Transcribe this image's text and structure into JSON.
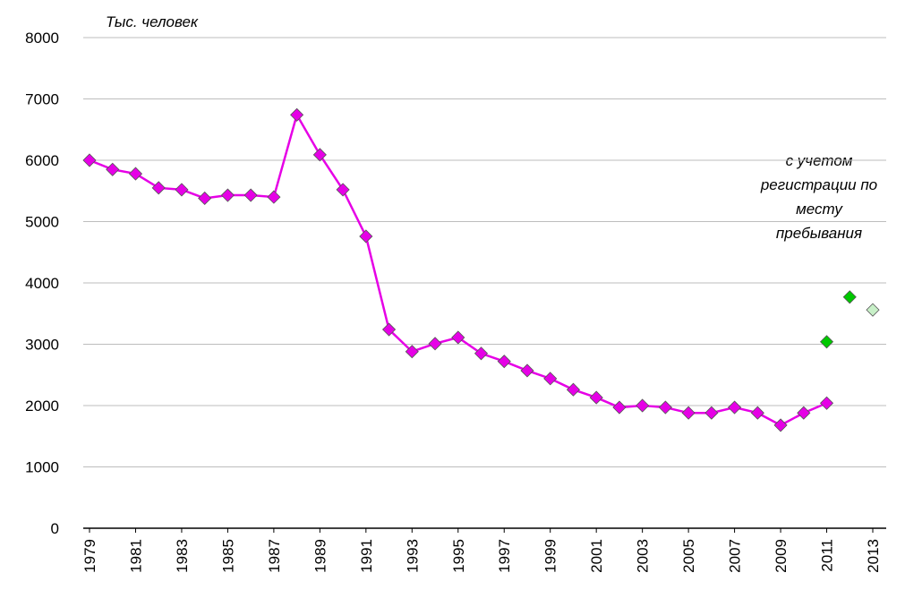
{
  "chart_data": {
    "type": "line",
    "annotations": [
      "Тыс. человек",
      [
        "с учетом",
        "регистрации по",
        "месту",
        "пребывания"
      ]
    ],
    "x": [
      1979,
      1980,
      1981,
      1982,
      1983,
      1984,
      1985,
      1986,
      1987,
      1988,
      1989,
      1990,
      1991,
      1992,
      1993,
      1994,
      1995,
      1996,
      1997,
      1998,
      1999,
      2000,
      2001,
      2002,
      2003,
      2004,
      2005,
      2006,
      2007,
      2008,
      2009,
      2010,
      2011,
      2012,
      2013
    ],
    "series": [
      {
        "color": "#e600e6",
        "line": true,
        "values": [
          6000,
          5850,
          5780,
          5550,
          5520,
          5380,
          5430,
          5430,
          5400,
          6740,
          6090,
          5520,
          4760,
          3240,
          2880,
          3010,
          3110,
          2850,
          2720,
          2570,
          2440,
          2260,
          2130,
          1970,
          2000,
          1970,
          1880,
          1880,
          1970,
          1880,
          1680,
          1880,
          2040,
          null,
          null
        ]
      },
      {
        "color": "#00c800",
        "line": false,
        "values": [
          null,
          null,
          null,
          null,
          null,
          null,
          null,
          null,
          null,
          null,
          null,
          null,
          null,
          null,
          null,
          null,
          null,
          null,
          null,
          null,
          null,
          null,
          null,
          null,
          null,
          null,
          null,
          null,
          null,
          null,
          null,
          null,
          3040,
          3770,
          null
        ]
      },
      {
        "color": "#c8f0c8",
        "line": false,
        "values": [
          null,
          null,
          null,
          null,
          null,
          null,
          null,
          null,
          null,
          null,
          null,
          null,
          null,
          null,
          null,
          null,
          null,
          null,
          null,
          null,
          null,
          null,
          null,
          null,
          null,
          null,
          null,
          null,
          null,
          null,
          null,
          null,
          null,
          null,
          3560
        ]
      }
    ],
    "xlim": [
      1979,
      2013
    ],
    "xticks": [
      1979,
      1981,
      1983,
      1985,
      1987,
      1989,
      1991,
      1993,
      1995,
      1997,
      1999,
      2001,
      2003,
      2005,
      2007,
      2009,
      2011,
      2013
    ],
    "ylim": [
      0,
      8000
    ],
    "yticks": [
      0,
      1000,
      2000,
      3000,
      4000,
      5000,
      6000,
      7000,
      8000
    ],
    "grid": true
  }
}
